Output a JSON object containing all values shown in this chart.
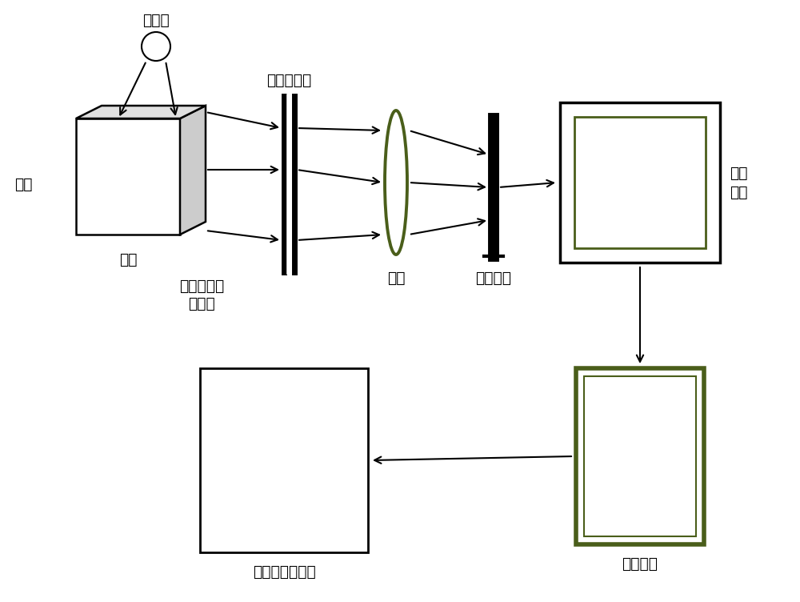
{
  "bg_color": "#ffffff",
  "text_color": "#000000",
  "olive_color": "#4a5e1a",
  "gray_color": "#cccccc",
  "light_gray": "#e0e0e0",
  "labels": {
    "infrared_source": "红外源",
    "infrared": "红外",
    "object": "物体",
    "filter": "红外滤波片",
    "lens": "镖头",
    "reflected_line1": "物体反射的",
    "reflected_line2": "红外线",
    "sensor": "感光芯片",
    "electronic_line1": "电子",
    "electronic_line2": "组件",
    "display": "显示组件",
    "image": "近红外黑白图像"
  },
  "font_size": 13.5
}
